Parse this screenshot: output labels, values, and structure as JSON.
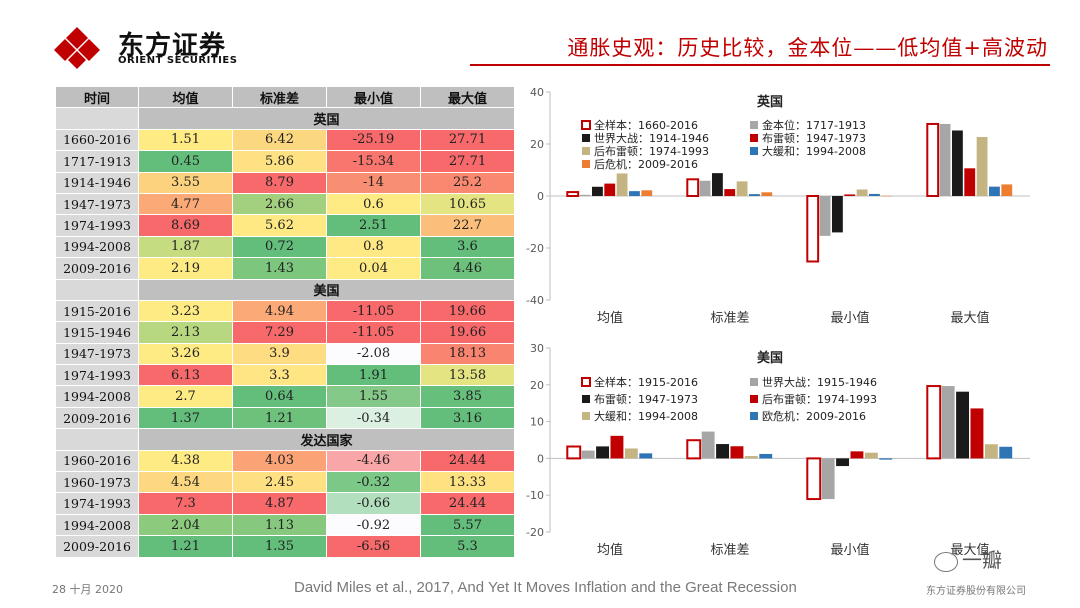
{
  "header": {
    "company_cn": "东方证券",
    "company_en": "ORIENT SECURITIES",
    "title": "通胀史观：历史比较，金本位——低均值+高波动"
  },
  "colors": {
    "brand": "#c00000",
    "series_outline": "#c00000",
    "series_gray": "#a6a6a6",
    "series_black": "#1a1a1a",
    "series_red": "#c00000",
    "series_khaki": "#c4b482",
    "series_blue": "#2e75b6",
    "series_orange": "#ed7d31"
  },
  "table": {
    "headers": [
      "时间",
      "均值",
      "标准差",
      "最小值",
      "最大值"
    ],
    "sections": [
      {
        "region": "英国",
        "rows": [
          {
            "period": "1660-2016",
            "cells": [
              {
                "v": "1.51",
                "c": "#ffeb84"
              },
              {
                "v": "6.42",
                "c": "#fbd87f"
              },
              {
                "v": "-25.19",
                "c": "#f8696b"
              },
              {
                "v": "27.71",
                "c": "#f8696b"
              }
            ]
          },
          {
            "period": "1717-1913",
            "cells": [
              {
                "v": "0.45",
                "c": "#63be7b"
              },
              {
                "v": "5.86",
                "c": "#fee182"
              },
              {
                "v": "-15.34",
                "c": "#f8766d"
              },
              {
                "v": "27.71",
                "c": "#f8696b"
              }
            ]
          },
          {
            "period": "1914-1946",
            "cells": [
              {
                "v": "3.55",
                "c": "#fdd27f"
              },
              {
                "v": "8.79",
                "c": "#f8696b"
              },
              {
                "v": "-14",
                "c": "#f88e72"
              },
              {
                "v": "25.2",
                "c": "#f98870"
              }
            ]
          },
          {
            "period": "1947-1973",
            "cells": [
              {
                "v": "4.77",
                "c": "#fbaa77"
              },
              {
                "v": "2.66",
                "c": "#a2d07f"
              },
              {
                "v": "0.6",
                "c": "#ffeb84"
              },
              {
                "v": "10.65",
                "c": "#e4e483"
              }
            ]
          },
          {
            "period": "1974-1993",
            "cells": [
              {
                "v": "8.69",
                "c": "#f8696b"
              },
              {
                "v": "5.62",
                "c": "#fee983"
              },
              {
                "v": "2.51",
                "c": "#63be7b"
              },
              {
                "v": "22.7",
                "c": "#fcbf7b"
              }
            ]
          },
          {
            "period": "1994-2008",
            "cells": [
              {
                "v": "1.87",
                "c": "#c6dc81"
              },
              {
                "v": "0.72",
                "c": "#63be7b"
              },
              {
                "v": "0.8",
                "c": "#ffe984"
              },
              {
                "v": "3.6",
                "c": "#63be7b"
              }
            ]
          },
          {
            "period": "2009-2016",
            "cells": [
              {
                "v": "2.19",
                "c": "#ffeb84"
              },
              {
                "v": "1.43",
                "c": "#7cc67d"
              },
              {
                "v": "0.04",
                "c": "#ffeb84"
              },
              {
                "v": "4.46",
                "c": "#6dc17b"
              }
            ]
          }
        ]
      },
      {
        "region": "美国",
        "rows": [
          {
            "period": "1915-2016",
            "cells": [
              {
                "v": "3.23",
                "c": "#ffeb84"
              },
              {
                "v": "4.94",
                "c": "#fbaa77"
              },
              {
                "v": "-11.05",
                "c": "#f8696b"
              },
              {
                "v": "19.66",
                "c": "#f8696b"
              }
            ]
          },
          {
            "period": "1915-1946",
            "cells": [
              {
                "v": "2.13",
                "c": "#b7d780"
              },
              {
                "v": "7.29",
                "c": "#f8696b"
              },
              {
                "v": "-11.05",
                "c": "#f8696b"
              },
              {
                "v": "19.66",
                "c": "#f8696b"
              }
            ]
          },
          {
            "period": "1947-1973",
            "cells": [
              {
                "v": "3.26",
                "c": "#ffeb84"
              },
              {
                "v": "3.9",
                "c": "#fedc81"
              },
              {
                "v": "-2.08",
                "c": "#fcfcff"
              },
              {
                "v": "18.13",
                "c": "#f98570"
              }
            ]
          },
          {
            "period": "1974-1993",
            "cells": [
              {
                "v": "6.13",
                "c": "#f8696b"
              },
              {
                "v": "3.3",
                "c": "#ffe583"
              },
              {
                "v": "1.91",
                "c": "#63be7b"
              },
              {
                "v": "13.58",
                "c": "#e4e483"
              }
            ]
          },
          {
            "period": "1994-2008",
            "cells": [
              {
                "v": "2.7",
                "c": "#ffeb84"
              },
              {
                "v": "0.64",
                "c": "#63be7b"
              },
              {
                "v": "1.55",
                "c": "#84c988"
              },
              {
                "v": "3.85",
                "c": "#66bf7b"
              }
            ]
          },
          {
            "period": "2009-2016",
            "cells": [
              {
                "v": "1.37",
                "c": "#63be7b"
              },
              {
                "v": "1.21",
                "c": "#6dc17b"
              },
              {
                "v": "-0.34",
                "c": "#dbf0e0"
              },
              {
                "v": "3.16",
                "c": "#63be7b"
              }
            ]
          }
        ]
      },
      {
        "region": "发达国家",
        "rows": [
          {
            "period": "1960-2016",
            "cells": [
              {
                "v": "4.38",
                "c": "#ffeb84"
              },
              {
                "v": "4.03",
                "c": "#fba276"
              },
              {
                "v": "-4.46",
                "c": "#f9a6a8"
              },
              {
                "v": "24.44",
                "c": "#f8696b"
              }
            ]
          },
          {
            "period": "1960-1973",
            "cells": [
              {
                "v": "4.54",
                "c": "#fed880"
              },
              {
                "v": "2.45",
                "c": "#fedf81"
              },
              {
                "v": "-0.32",
                "c": "#7cc987"
              },
              {
                "v": "13.33",
                "c": "#fee282"
              }
            ]
          },
          {
            "period": "1974-1993",
            "cells": [
              {
                "v": "7.3",
                "c": "#f8696b"
              },
              {
                "v": "4.87",
                "c": "#f8696b"
              },
              {
                "v": "-0.66",
                "c": "#b2e0be"
              },
              {
                "v": "24.44",
                "c": "#f8696b"
              }
            ]
          },
          {
            "period": "1994-2008",
            "cells": [
              {
                "v": "2.04",
                "c": "#8ccb7e"
              },
              {
                "v": "1.13",
                "c": "#86c97e"
              },
              {
                "v": "-0.92",
                "c": "#fcfcff"
              },
              {
                "v": "5.57",
                "c": "#63be7b"
              }
            ]
          },
          {
            "period": "2009-2016",
            "cells": [
              {
                "v": "1.21",
                "c": "#63be7b"
              },
              {
                "v": "1.35",
                "c": "#63be7b"
              },
              {
                "v": "-6.56",
                "c": "#f8696b"
              },
              {
                "v": "5.3",
                "c": "#63be7b"
              }
            ]
          }
        ]
      }
    ]
  },
  "chart_data": [
    {
      "type": "bar",
      "title": "英国",
      "categories": [
        "均值",
        "标准差",
        "最小值",
        "最大值"
      ],
      "ylim": [
        -40,
        40
      ],
      "yticks": [
        40,
        20,
        0,
        -20,
        -40
      ],
      "legend_position": "top-left",
      "series": [
        {
          "name": "全样本：1660-2016",
          "style": "outline",
          "color": "#c00000",
          "values": [
            1.51,
            6.42,
            -25.19,
            27.71
          ]
        },
        {
          "name": "金本位：1717-1913",
          "style": "fill",
          "color": "#a6a6a6",
          "values": [
            0.45,
            5.86,
            -15.34,
            27.71
          ]
        },
        {
          "name": "世界大战：1914-1946",
          "style": "fill",
          "color": "#1a1a1a",
          "values": [
            3.55,
            8.79,
            -14,
            25.2
          ]
        },
        {
          "name": "布雷顿：1947-1973",
          "style": "fill",
          "color": "#c00000",
          "values": [
            4.77,
            2.66,
            0.6,
            10.65
          ]
        },
        {
          "name": "后布雷顿：1974-1993",
          "style": "fill",
          "color": "#c4b482",
          "values": [
            8.69,
            5.62,
            2.51,
            22.7
          ]
        },
        {
          "name": "大缓和：1994-2008",
          "style": "fill",
          "color": "#2e75b6",
          "values": [
            1.87,
            0.72,
            0.8,
            3.6
          ]
        },
        {
          "name": "后危机：2009-2016",
          "style": "fill",
          "color": "#ed7d31",
          "values": [
            2.19,
            1.43,
            0.04,
            4.46
          ]
        }
      ]
    },
    {
      "type": "bar",
      "title": "美国",
      "categories": [
        "均值",
        "标准差",
        "最小值",
        "最大值"
      ],
      "ylim": [
        -20,
        30
      ],
      "yticks": [
        30,
        20,
        10,
        0,
        -10,
        -20
      ],
      "legend_position": "top-left",
      "series": [
        {
          "name": "全样本：1915-2016",
          "style": "outline",
          "color": "#c00000",
          "values": [
            3.23,
            4.94,
            -11.05,
            19.66
          ]
        },
        {
          "name": "世界大战：1915-1946",
          "style": "fill",
          "color": "#a6a6a6",
          "values": [
            2.13,
            7.29,
            -11.05,
            19.66
          ]
        },
        {
          "name": "布雷顿：1947-1973",
          "style": "fill",
          "color": "#1a1a1a",
          "values": [
            3.26,
            3.9,
            -2.08,
            18.13
          ]
        },
        {
          "name": "后布雷顿：1974-1993",
          "style": "fill",
          "color": "#c00000",
          "values": [
            6.13,
            3.3,
            1.91,
            13.58
          ]
        },
        {
          "name": "大缓和：1994-2008",
          "style": "fill",
          "color": "#c4b482",
          "values": [
            2.7,
            0.64,
            1.55,
            3.85
          ]
        },
        {
          "name": "欧危机：2009-2016",
          "style": "fill",
          "color": "#2e75b6",
          "values": [
            1.37,
            1.21,
            -0.34,
            3.16
          ]
        }
      ]
    }
  ],
  "footer": {
    "page": "28 十月 2020",
    "source": "David Miles et al., 2017, And Yet It Moves Inflation and the Great Recession",
    "company": "东方证券股份有限公司",
    "watermark": "一瓣"
  }
}
